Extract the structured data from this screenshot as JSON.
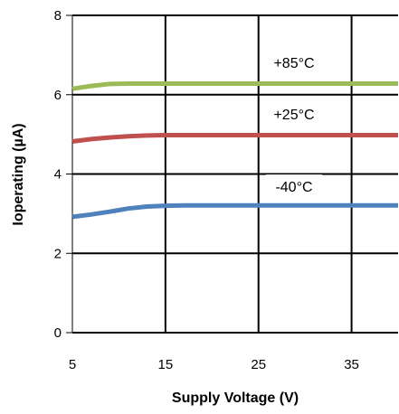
{
  "chart_data": {
    "type": "line",
    "xlabel": "Supply Voltage (V)",
    "ylabel": "Ioperating (µA)",
    "xlim": [
      5,
      40
    ],
    "ylim": [
      0,
      8
    ],
    "xticks": [
      5,
      15,
      25,
      35
    ],
    "yticks": [
      0,
      2,
      4,
      6,
      8
    ],
    "grid": true,
    "series": [
      {
        "name": "+85°C",
        "color": "#9bbb59",
        "x": [
          5,
          7,
          9,
          11,
          13,
          15,
          20,
          25,
          30,
          35,
          40
        ],
        "y": [
          6.15,
          6.22,
          6.27,
          6.28,
          6.28,
          6.28,
          6.28,
          6.28,
          6.28,
          6.28,
          6.28
        ]
      },
      {
        "name": "+25°C",
        "color": "#c0504d",
        "x": [
          5,
          7,
          9,
          11,
          13,
          15,
          20,
          25,
          30,
          35,
          40
        ],
        "y": [
          4.82,
          4.88,
          4.92,
          4.95,
          4.97,
          4.98,
          4.98,
          4.98,
          4.98,
          4.98,
          4.98
        ]
      },
      {
        "name": "-40°C",
        "color": "#4f81bd",
        "x": [
          5,
          7,
          9,
          11,
          13,
          15,
          17,
          20,
          25,
          30,
          35,
          40
        ],
        "y": [
          2.92,
          2.98,
          3.05,
          3.13,
          3.18,
          3.2,
          3.21,
          3.21,
          3.21,
          3.21,
          3.21,
          3.21
        ]
      }
    ]
  }
}
